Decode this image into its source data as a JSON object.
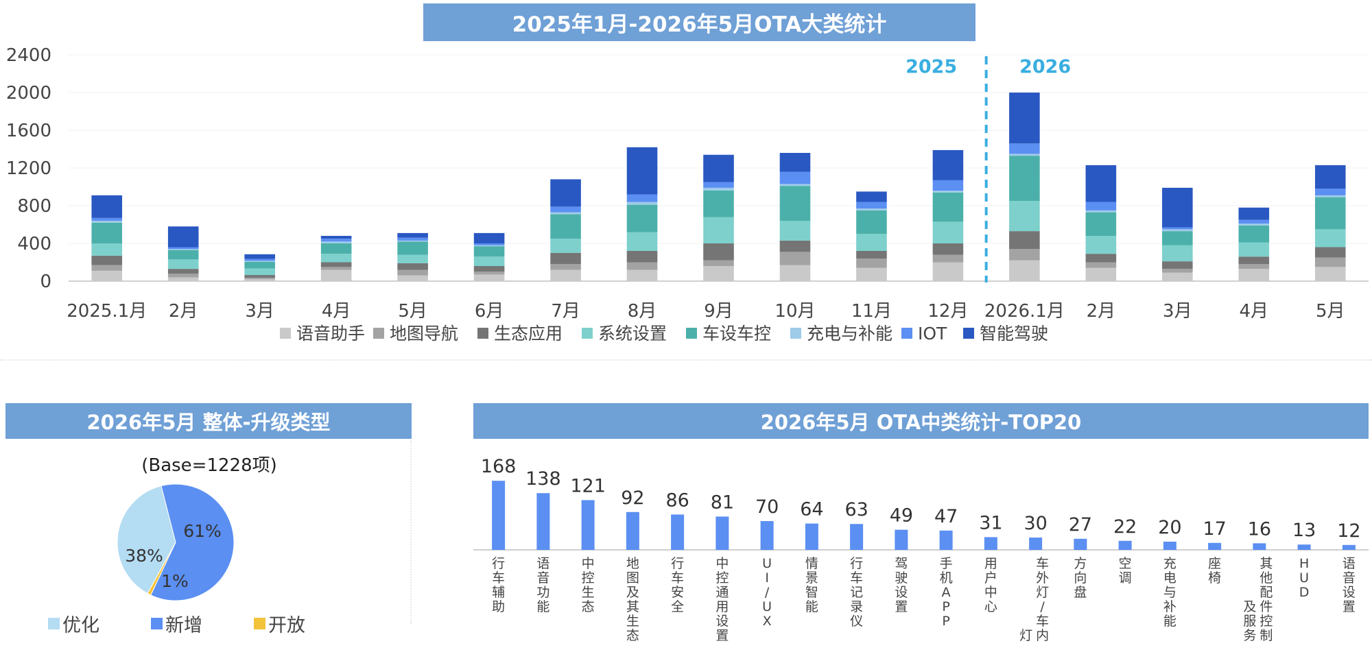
{
  "top_title": "2025年1月-2026年5月OTA大类统计",
  "pie_title": "2026年5月 整体-升级类型",
  "top20_title": "2026年5月 OTA中类统计-TOP20",
  "pie_base": "(Base=1228项)",
  "chart_data": [
    {
      "type": "bar",
      "stacked": true,
      "categories": [
        "2025.1月",
        "2月",
        "3月",
        "4月",
        "5月",
        "6月",
        "7月",
        "8月",
        "9月",
        "10月",
        "11月",
        "12月",
        "2026.1月",
        "2月",
        "3月",
        "4月",
        "5月"
      ],
      "ylim": [
        0,
        2400
      ],
      "yticks": [
        "0",
        "400",
        "800",
        "1200",
        "1600",
        "2000",
        "2400"
      ],
      "grid": true,
      "legend": "bottom",
      "year_labels": [
        "2025",
        "2026"
      ],
      "series": [
        {
          "name": "语音助手",
          "color": "#c9c9c9",
          "values": [
            110,
            40,
            20,
            120,
            60,
            70,
            120,
            120,
            160,
            170,
            140,
            200,
            220,
            140,
            90,
            130,
            150
          ]
        },
        {
          "name": "地图导航",
          "color": "#a3a3a3",
          "values": [
            60,
            40,
            15,
            30,
            60,
            30,
            60,
            80,
            60,
            140,
            100,
            80,
            120,
            60,
            40,
            50,
            100
          ]
        },
        {
          "name": "生态应用",
          "color": "#757575",
          "values": [
            100,
            50,
            30,
            50,
            70,
            60,
            120,
            120,
            180,
            120,
            80,
            120,
            190,
            90,
            80,
            80,
            110
          ]
        },
        {
          "name": "系统设置",
          "color": "#7dd0cc",
          "values": [
            130,
            100,
            70,
            90,
            90,
            100,
            150,
            200,
            280,
            210,
            180,
            230,
            320,
            190,
            170,
            150,
            190
          ]
        },
        {
          "name": "车设车控",
          "color": "#4cb0aa",
          "values": [
            220,
            100,
            70,
            110,
            140,
            110,
            260,
            290,
            280,
            370,
            250,
            310,
            480,
            250,
            150,
            180,
            340
          ]
        },
        {
          "name": "充电与补能",
          "color": "#9ecbe8",
          "values": [
            20,
            10,
            10,
            20,
            10,
            10,
            20,
            30,
            30,
            20,
            20,
            20,
            20,
            20,
            20,
            20,
            20
          ]
        },
        {
          "name": "IOT",
          "color": "#5b8ff2",
          "values": [
            30,
            20,
            20,
            30,
            30,
            20,
            60,
            80,
            60,
            130,
            70,
            110,
            110,
            90,
            20,
            40,
            70
          ]
        },
        {
          "name": "智能驾驶",
          "color": "#2a58c2",
          "values": [
            240,
            220,
            50,
            30,
            50,
            110,
            290,
            500,
            290,
            200,
            110,
            320,
            540,
            390,
            420,
            130,
            250
          ]
        }
      ]
    },
    {
      "type": "pie",
      "slices": [
        {
          "name": "优化",
          "value": 38,
          "label": "38%",
          "color": "#b4dcf3"
        },
        {
          "name": "新增",
          "value": 61,
          "label": "61%",
          "color": "#5b8ff2"
        },
        {
          "name": "开放",
          "value": 1,
          "label": "1%",
          "color": "#f2c23a"
        }
      ],
      "legend": "bottom"
    },
    {
      "type": "bar",
      "color": "#5b8ff2",
      "categories": [
        "行车辅助",
        "语音功能",
        "中控生态",
        "地图及其生态",
        "行车安全",
        "中控通用设置",
        "UI/UX",
        "情景智能",
        "行车记录仪",
        "驾驶设置",
        "手机APP",
        "用户中心",
        "车外灯/车内灯",
        "方向盘",
        "空调",
        "充电与补能",
        "座椅",
        "其他配件控制及服务",
        "HUD",
        "语音设置"
      ],
      "values": [
        168,
        138,
        121,
        92,
        86,
        81,
        70,
        64,
        63,
        49,
        47,
        31,
        30,
        27,
        22,
        20,
        17,
        16,
        13,
        12
      ],
      "ylim": [
        0,
        175
      ]
    }
  ]
}
